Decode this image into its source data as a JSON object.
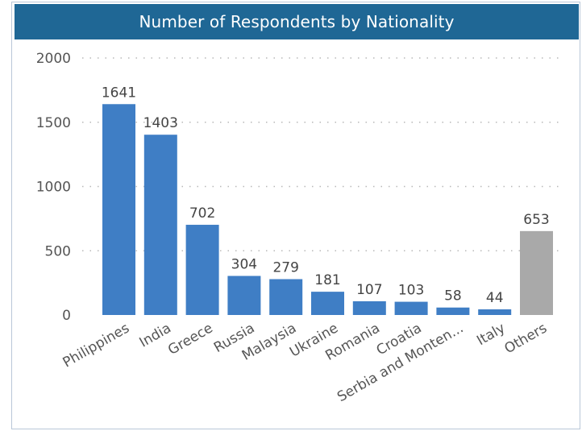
{
  "chart_data": {
    "type": "bar",
    "title": "Number of Respondents by Nationality",
    "categories": [
      "Philippines",
      "India",
      "Greece",
      "Russia",
      "Malaysia",
      "Ukraine",
      "Romania",
      "Croatia",
      "Serbia and Monten...",
      "Italy",
      "Others"
    ],
    "values": [
      1641,
      1403,
      702,
      304,
      279,
      181,
      107,
      103,
      58,
      44,
      653
    ],
    "data_labels": [
      "1641",
      "1403",
      "702",
      "304",
      "279",
      "181",
      "107",
      "103",
      "58",
      "44",
      "653"
    ],
    "ylim": [
      0,
      2000
    ],
    "yticks": [
      0,
      500,
      1000,
      1500,
      2000
    ],
    "ytick_labels": [
      "0",
      "500",
      "1000",
      "1500",
      "2000"
    ],
    "xlabel": "",
    "ylabel": "",
    "grid": true,
    "legend": "none",
    "colors": {
      "bar": "#3f7ec5",
      "others_bar": "#a9a9a9",
      "title_background": "#1f6795",
      "title_text": "#ffffff"
    }
  }
}
